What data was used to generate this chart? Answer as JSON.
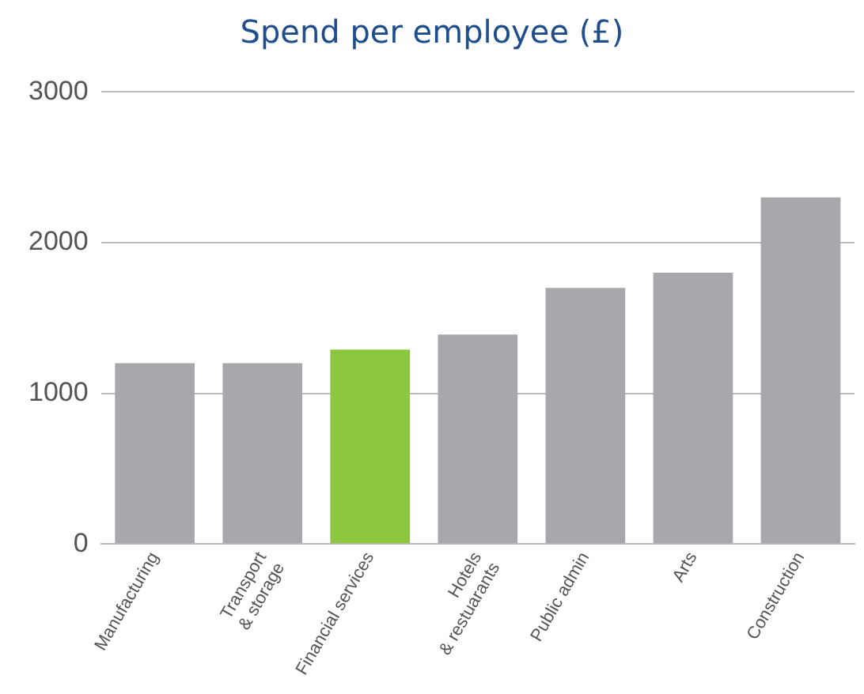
{
  "chart_data": {
    "type": "bar",
    "title": "Spend per employee (£)",
    "categories": [
      "Manufacturing",
      "Transport\n& storage",
      "Financial services",
      "Hotels\n& restuarants",
      "Public admin",
      "Arts",
      "Construction"
    ],
    "values": [
      1200,
      1200,
      1290,
      1390,
      1700,
      1800,
      2300
    ],
    "colors": [
      "#a7a8ac",
      "#a7a8ac",
      "#8dc63f",
      "#a7a8ac",
      "#a7a8ac",
      "#a7a8ac",
      "#a7a8ac"
    ],
    "ylim": [
      0,
      3000
    ],
    "yticks": [
      0,
      1000,
      2000,
      3000
    ],
    "grid": "y",
    "legend": false
  }
}
